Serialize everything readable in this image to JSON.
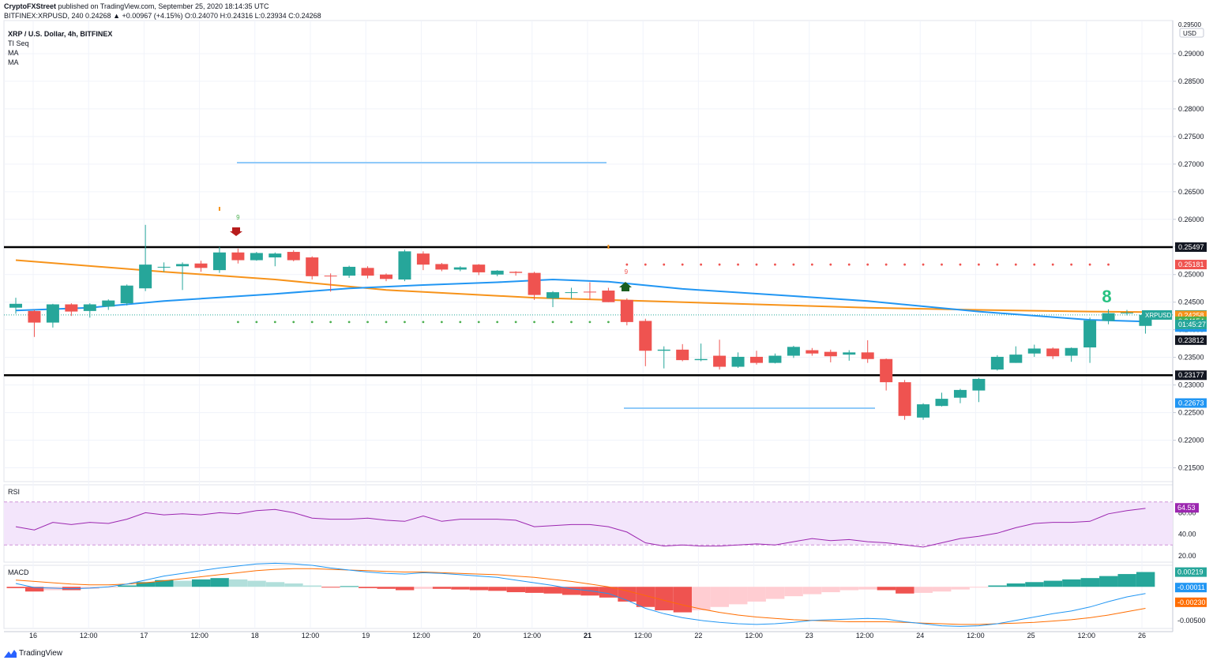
{
  "header": {
    "publisher": "CryptoFXStreet",
    "published_text": " published on TradingView.com, September 25, 2020 18:14:35 UTC",
    "ohlc_line": "BITFINEX:XRPUSD, 240  0.24268 ▲ +0.00967 (+4.15%) O:0.24070 H:0.24316 L:0.23934 C:0.24268"
  },
  "legend": {
    "title": "XRP / U.S. Dollar, 4h, BITFINEX",
    "ind1": "TI Seq",
    "ind2": "MA",
    "ind3": "MA"
  },
  "footer": {
    "brand": "TradingView"
  },
  "colors": {
    "up": "#26a69a",
    "down": "#ef5350",
    "ma_orange": "#f7931a",
    "ma_blue": "#2196f3",
    "rsi": "#9c27b0",
    "rsi_fill": "#f3e5fb",
    "grid": "#f0f3fa",
    "axis_text": "#131722"
  },
  "chart_data": {
    "type": "candlestick",
    "symbol": "XRPUSD",
    "price_axis": {
      "unit_badge": "USD",
      "ticks": [
        "0.29000",
        "0.28500",
        "0.28000",
        "0.27500",
        "0.27000",
        "0.26500",
        "0.26000",
        "0.25500",
        "0.25000",
        "0.24500",
        "0.24000",
        "0.23500",
        "0.23000",
        "0.22500",
        "0.22000",
        "0.21500"
      ],
      "top_label": "0.29500",
      "ylim": [
        0.2125,
        0.296
      ]
    },
    "time_axis": [
      "16",
      "12:00",
      "17",
      "12:00",
      "18",
      "12:00",
      "19",
      "12:00",
      "20",
      "12:00",
      "21",
      "12:00",
      "22",
      "12:00",
      "23",
      "12:00",
      "24",
      "12:00",
      "25",
      "12:00",
      "26"
    ],
    "candles": [
      [
        0.244,
        0.2447,
        0.2429,
        0.2458
      ],
      [
        0.2434,
        0.2413,
        0.2387,
        0.2436
      ],
      [
        0.2413,
        0.2446,
        0.2404,
        0.2447
      ],
      [
        0.2446,
        0.2433,
        0.2425,
        0.2448
      ],
      [
        0.2434,
        0.2446,
        0.2422,
        0.2448
      ],
      [
        0.2442,
        0.2453,
        0.2436,
        0.2455
      ],
      [
        0.2448,
        0.248,
        0.2444,
        0.2482
      ],
      [
        0.2475,
        0.2518,
        0.247,
        0.259
      ],
      [
        0.2513,
        0.2514,
        0.2505,
        0.2522
      ],
      [
        0.2515,
        0.2519,
        0.2472,
        0.2522
      ],
      [
        0.252,
        0.2512,
        0.2505,
        0.2525
      ],
      [
        0.2508,
        0.254,
        0.2503,
        0.255
      ],
      [
        0.254,
        0.2526,
        0.252,
        0.2547
      ],
      [
        0.2526,
        0.2539,
        0.2525,
        0.2541
      ],
      [
        0.2531,
        0.2538,
        0.2515,
        0.254
      ],
      [
        0.2541,
        0.2526,
        0.2524,
        0.2544
      ],
      [
        0.2531,
        0.2497,
        0.2491,
        0.2533
      ],
      [
        0.2498,
        0.2497,
        0.2469,
        0.2502
      ],
      [
        0.2498,
        0.2514,
        0.2494,
        0.2516
      ],
      [
        0.2512,
        0.2498,
        0.2493,
        0.2515
      ],
      [
        0.25,
        0.2492,
        0.2488,
        0.2502
      ],
      [
        0.2491,
        0.2542,
        0.2488,
        0.2545
      ],
      [
        0.2538,
        0.2518,
        0.2508,
        0.2542
      ],
      [
        0.2519,
        0.2509,
        0.2506,
        0.2521
      ],
      [
        0.2509,
        0.2513,
        0.2506,
        0.2515
      ],
      [
        0.2518,
        0.2504,
        0.2499,
        0.2519
      ],
      [
        0.25,
        0.2507,
        0.2497,
        0.2508
      ],
      [
        0.2505,
        0.2503,
        0.2498,
        0.2506
      ],
      [
        0.2503,
        0.2463,
        0.2454,
        0.2505
      ],
      [
        0.2457,
        0.2468,
        0.2441,
        0.247
      ],
      [
        0.2468,
        0.2468,
        0.2456,
        0.2476
      ],
      [
        0.2469,
        0.2468,
        0.2455,
        0.2486
      ],
      [
        0.2471,
        0.245,
        0.245,
        0.2476
      ],
      [
        0.2454,
        0.2414,
        0.2408,
        0.2457
      ],
      [
        0.2416,
        0.2362,
        0.2334,
        0.242
      ],
      [
        0.2362,
        0.2364,
        0.233,
        0.237
      ],
      [
        0.2364,
        0.2345,
        0.2343,
        0.2374
      ],
      [
        0.2345,
        0.2347,
        0.2343,
        0.2375
      ],
      [
        0.2353,
        0.2333,
        0.2328,
        0.2382
      ],
      [
        0.2333,
        0.2351,
        0.2331,
        0.2359
      ],
      [
        0.2351,
        0.234,
        0.2337,
        0.2362
      ],
      [
        0.234,
        0.2353,
        0.2339,
        0.2357
      ],
      [
        0.2353,
        0.2369,
        0.2349,
        0.2371
      ],
      [
        0.2363,
        0.2357,
        0.2353,
        0.2367
      ],
      [
        0.236,
        0.2352,
        0.2341,
        0.2364
      ],
      [
        0.2355,
        0.2359,
        0.2344,
        0.2363
      ],
      [
        0.2359,
        0.2347,
        0.234,
        0.2381
      ],
      [
        0.2347,
        0.2305,
        0.229,
        0.2348
      ],
      [
        0.2305,
        0.2244,
        0.2237,
        0.2309
      ],
      [
        0.2241,
        0.2265,
        0.2237,
        0.2267
      ],
      [
        0.2262,
        0.2275,
        0.2261,
        0.2286
      ],
      [
        0.2277,
        0.2291,
        0.2267,
        0.2293
      ],
      [
        0.229,
        0.2311,
        0.2269,
        0.2313
      ],
      [
        0.2328,
        0.2351,
        0.2326,
        0.2354
      ],
      [
        0.234,
        0.2355,
        0.234,
        0.237
      ],
      [
        0.2357,
        0.2366,
        0.2351,
        0.2373
      ],
      [
        0.2366,
        0.2352,
        0.2347,
        0.2368
      ],
      [
        0.2353,
        0.2367,
        0.2342,
        0.2368
      ],
      [
        0.2368,
        0.2417,
        0.234,
        0.2422
      ],
      [
        0.2416,
        0.243,
        0.241,
        0.2437
      ],
      [
        0.2431,
        0.2431,
        0.2426,
        0.2436
      ],
      [
        0.2407,
        0.2427,
        0.2393,
        0.2432
      ]
    ],
    "ma_orange": [
      [
        0,
        0.2526
      ],
      [
        8,
        0.2505
      ],
      [
        14,
        0.2491
      ],
      [
        20,
        0.2472
      ],
      [
        28,
        0.2458
      ],
      [
        34,
        0.2452
      ],
      [
        40,
        0.2446
      ],
      [
        46,
        0.244
      ],
      [
        52,
        0.2436
      ],
      [
        58,
        0.2433
      ],
      [
        61,
        0.2432
      ]
    ],
    "ma_blue": [
      [
        0,
        0.2435
      ],
      [
        4,
        0.244
      ],
      [
        8,
        0.2452
      ],
      [
        14,
        0.2465
      ],
      [
        18,
        0.2475
      ],
      [
        22,
        0.2481
      ],
      [
        26,
        0.2486
      ],
      [
        29,
        0.2491
      ],
      [
        32,
        0.2487
      ],
      [
        36,
        0.2474
      ],
      [
        42,
        0.2461
      ],
      [
        46,
        0.2452
      ],
      [
        52,
        0.2433
      ],
      [
        58,
        0.2418
      ],
      [
        61,
        0.2415
      ]
    ],
    "levels": [
      {
        "price": 0.25497,
        "label": "0.25497"
      },
      {
        "price": 0.23177,
        "label": "0.23177"
      }
    ],
    "price_labels": [
      {
        "price": 0.25181,
        "label": "0.25181",
        "color": "#ef5350"
      },
      {
        "price": 0.24268,
        "label": "0.24268",
        "color": "#26a69a"
      },
      {
        "price": 0.24258,
        "label": "0.24258",
        "color": "#f7931a"
      },
      {
        "price": 0.24154,
        "label": "0.24154",
        "color": "#4caf50"
      },
      {
        "price": 0.24049,
        "label": "0.24049",
        "color": "#2196f3"
      },
      {
        "price": 0.23812,
        "label": "0.23812",
        "color": "#131722"
      },
      {
        "price": 0.22673,
        "label": "0.22673",
        "color": "#2196f3"
      }
    ],
    "last_price_badge": {
      "symbol": "XRPUSD",
      "countdown": "01:45:27"
    },
    "td_seq": {
      "top_count": "9",
      "bottom_count": "9",
      "current_count": "8"
    },
    "rsi": {
      "label": "RSI",
      "value_label": "64.53",
      "ticks": [
        "80.00",
        "40.00",
        "20.00"
      ],
      "ylim": [
        14,
        86
      ],
      "band": [
        30,
        70
      ],
      "values": [
        47,
        44,
        51,
        49,
        51,
        50,
        54,
        60,
        58,
        59,
        58,
        60,
        59,
        62,
        63,
        60,
        55,
        54,
        54,
        55,
        53,
        52,
        57,
        52,
        54,
        54,
        54,
        53,
        47,
        48,
        49,
        49,
        47,
        42,
        32,
        29,
        30,
        29,
        29,
        30,
        31,
        30,
        33,
        36,
        34,
        35,
        33,
        32,
        30,
        28,
        32,
        36,
        38,
        41,
        46,
        50,
        51,
        51,
        52,
        59,
        62,
        64
      ]
    },
    "macd": {
      "label": "MACD",
      "labels": [
        "0.00219",
        "-0.00011",
        "-0.00230",
        "-0.00500"
      ],
      "ylim": [
        -0.0062,
        0.0032
      ],
      "hist": [
        -0.0002,
        -0.0007,
        -0.0005,
        -0.0005,
        -0.0003,
        -0.0001,
        0.0002,
        0.0007,
        0.001,
        0.0009,
        0.0011,
        0.0013,
        0.0011,
        0.0009,
        0.0007,
        0.0005,
        0.0002,
        -0.0001,
        0.0001,
        -0.0002,
        -0.0003,
        -0.0005,
        -0.0003,
        -0.0003,
        -0.0004,
        -0.0005,
        -0.0006,
        -0.0008,
        -0.0009,
        -0.001,
        -0.0012,
        -0.0013,
        -0.0016,
        -0.0022,
        -0.003,
        -0.0035,
        -0.0038,
        -0.0035,
        -0.003,
        -0.0026,
        -0.0022,
        -0.0018,
        -0.0014,
        -0.0011,
        -0.0008,
        -0.0005,
        -0.0004,
        -0.0005,
        -0.001,
        -0.0009,
        -0.0007,
        -0.0004,
        -0.0001,
        0.0002,
        0.0005,
        0.0007,
        0.0009,
        0.0011,
        0.0013,
        0.0016,
        0.0019,
        0.0022
      ],
      "macd": [
        0.0005,
        -0.0001,
        -0.0002,
        -0.0003,
        -0.0002,
        0.0,
        0.0004,
        0.001,
        0.0016,
        0.002,
        0.0024,
        0.0028,
        0.0031,
        0.0034,
        0.0035,
        0.0034,
        0.0032,
        0.0028,
        0.0025,
        0.0022,
        0.002,
        0.0019,
        0.0021,
        0.002,
        0.0018,
        0.0016,
        0.0014,
        0.001,
        0.0006,
        0.0002,
        -0.0003,
        -0.0006,
        -0.001,
        -0.002,
        -0.0032,
        -0.004,
        -0.0046,
        -0.005,
        -0.0053,
        -0.0055,
        -0.0056,
        -0.0055,
        -0.0053,
        -0.005,
        -0.0049,
        -0.0048,
        -0.0047,
        -0.0048,
        -0.0052,
        -0.0055,
        -0.0058,
        -0.0059,
        -0.0058,
        -0.0055,
        -0.005,
        -0.0045,
        -0.004,
        -0.0036,
        -0.003,
        -0.0022,
        -0.0015,
        -0.001
      ],
      "signal": [
        0.001,
        0.0008,
        0.0006,
        0.0004,
        0.0003,
        0.0003,
        0.0004,
        0.0006,
        0.0009,
        0.0012,
        0.0015,
        0.0018,
        0.0021,
        0.0024,
        0.0026,
        0.0027,
        0.0027,
        0.0026,
        0.0025,
        0.0024,
        0.0023,
        0.0022,
        0.0022,
        0.0021,
        0.002,
        0.0019,
        0.0018,
        0.0016,
        0.0014,
        0.0011,
        0.0008,
        0.0004,
        0.0,
        -0.0006,
        -0.0013,
        -0.002,
        -0.0027,
        -0.0033,
        -0.0038,
        -0.0042,
        -0.0045,
        -0.0047,
        -0.0049,
        -0.005,
        -0.0051,
        -0.0052,
        -0.0052,
        -0.0052,
        -0.0053,
        -0.0054,
        -0.0055,
        -0.0056,
        -0.0056,
        -0.0055,
        -0.0054,
        -0.0053,
        -0.0051,
        -0.0049,
        -0.0046,
        -0.0042,
        -0.0037,
        -0.0032
      ]
    }
  }
}
